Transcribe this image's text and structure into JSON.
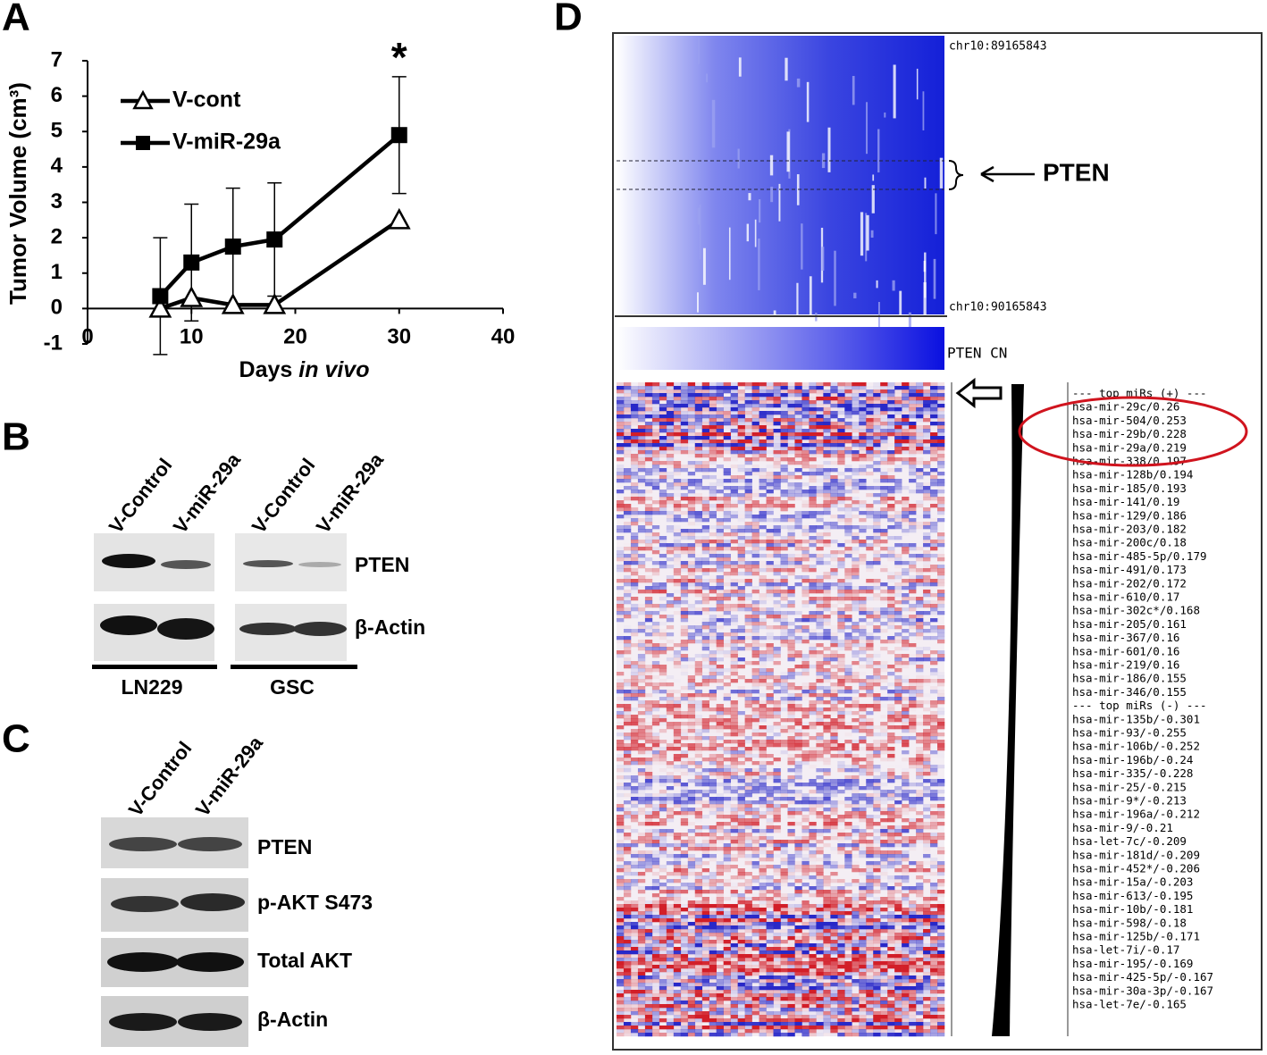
{
  "chart_data": {
    "type": "line",
    "ylabel": "Tumor Volume (cm³)",
    "xlabel": "Days",
    "xlabel_italic": "in vivo",
    "xlim": [
      0,
      40
    ],
    "xticks": [
      0,
      10,
      20,
      30,
      40
    ],
    "ylim": [
      -1,
      7
    ],
    "yticks": [
      -1,
      0,
      1,
      2,
      3,
      4,
      5,
      6,
      7
    ],
    "annotation": "*",
    "series": [
      {
        "name": "V-cont",
        "color": "#000000",
        "marker": "triangle",
        "x": [
          7,
          10,
          14,
          18,
          30
        ],
        "values": [
          0,
          0.3,
          0.1,
          0.1,
          2.5
        ]
      },
      {
        "name": "V-miR-29a",
        "color": "#000000",
        "marker": "square",
        "x": [
          7,
          10,
          14,
          18,
          30
        ],
        "values": [
          0.35,
          1.3,
          1.75,
          1.95,
          4.9
        ],
        "errors": [
          1.65,
          1.65,
          1.65,
          1.6,
          1.65
        ]
      }
    ]
  },
  "panels": {
    "A": "A",
    "B": "B",
    "C": "C",
    "D": "D"
  },
  "blot_b": {
    "columns": [
      "V-Control",
      "V-miR-29a",
      "V-Control",
      "V-miR-29a"
    ],
    "rows": [
      "PTEN",
      "β-Actin"
    ],
    "groups": [
      "LN229",
      "GSC"
    ]
  },
  "blot_c": {
    "columns": [
      "V-Control",
      "V-miR-29a"
    ],
    "rows": [
      "PTEN",
      "p-AKT S473",
      "Total AKT",
      "β-Actin"
    ]
  },
  "heatmap": {
    "top_label": "chr10:89165843",
    "bottom_label": "chr10:90165843",
    "gene": "PTEN",
    "colorbar_label": "PTEN CN",
    "mirs": [
      "--- top miRs (+) ---",
      "hsa-mir-29c/0.26",
      "hsa-mir-504/0.253",
      "hsa-mir-29b/0.228",
      "hsa-mir-29a/0.219",
      "hsa-mir-338/0.197",
      "hsa-mir-128b/0.194",
      "hsa-mir-185/0.193",
      "hsa-mir-141/0.19",
      "hsa-mir-129/0.186",
      "hsa-mir-203/0.182",
      "hsa-mir-200c/0.18",
      "hsa-mir-485-5p/0.179",
      "hsa-mir-491/0.173",
      "hsa-mir-202/0.172",
      "hsa-mir-610/0.17",
      "hsa-mir-302c*/0.168",
      "hsa-mir-205/0.161",
      "hsa-mir-367/0.16",
      "hsa-mir-601/0.16",
      "hsa-mir-219/0.16",
      "hsa-mir-186/0.155",
      "hsa-mir-346/0.155",
      "--- top miRs (-) ---",
      "hsa-mir-135b/-0.301",
      "hsa-mir-93/-0.255",
      "hsa-mir-106b/-0.252",
      "hsa-mir-196b/-0.24",
      "hsa-mir-335/-0.228",
      "hsa-mir-25/-0.215",
      "hsa-mir-9*/-0.213",
      "hsa-mir-196a/-0.212",
      "hsa-mir-9/-0.21",
      "hsa-let-7c/-0.209",
      "hsa-mir-181d/-0.209",
      "hsa-mir-452*/-0.206",
      "hsa-mir-15a/-0.203",
      "hsa-mir-613/-0.195",
      "hsa-mir-10b/-0.181",
      "hsa-mir-598/-0.18",
      "hsa-mir-125b/-0.171",
      "hsa-let-7i/-0.17",
      "hsa-mir-195/-0.169",
      "hsa-mir-425-5p/-0.167",
      "hsa-mir-30a-3p/-0.167",
      "hsa-let-7e/-0.165"
    ]
  }
}
